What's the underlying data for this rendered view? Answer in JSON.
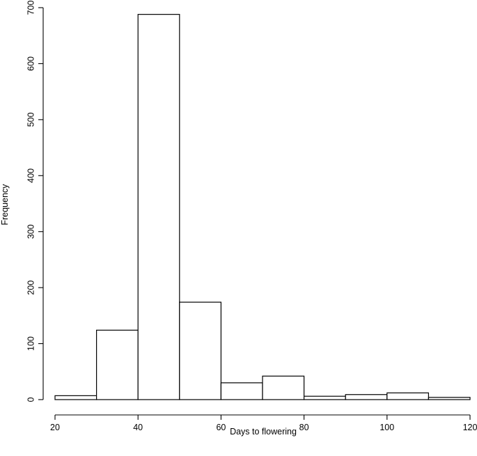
{
  "chart_data": {
    "type": "histogram",
    "title": "",
    "xlabel": "Days to flowering",
    "ylabel": "Frequency",
    "bins": [
      {
        "start": 20,
        "end": 30,
        "count": 7
      },
      {
        "start": 30,
        "end": 40,
        "count": 124
      },
      {
        "start": 40,
        "end": 50,
        "count": 688
      },
      {
        "start": 50,
        "end": 60,
        "count": 174
      },
      {
        "start": 60,
        "end": 70,
        "count": 30
      },
      {
        "start": 70,
        "end": 80,
        "count": 42
      },
      {
        "start": 80,
        "end": 90,
        "count": 6
      },
      {
        "start": 90,
        "end": 100,
        "count": 9
      },
      {
        "start": 100,
        "end": 110,
        "count": 12
      },
      {
        "start": 110,
        "end": 120,
        "count": 4
      }
    ],
    "xlim": [
      20,
      120
    ],
    "ylim": [
      0,
      700
    ],
    "x_ticks": [
      20,
      40,
      60,
      80,
      100,
      120
    ],
    "y_ticks": [
      0,
      100,
      200,
      300,
      400,
      500,
      600,
      700
    ],
    "grid": false,
    "legend": "none",
    "colors": {
      "bar_fill": "#ffffff",
      "bar_stroke": "#000000",
      "axis": "#000000"
    }
  }
}
